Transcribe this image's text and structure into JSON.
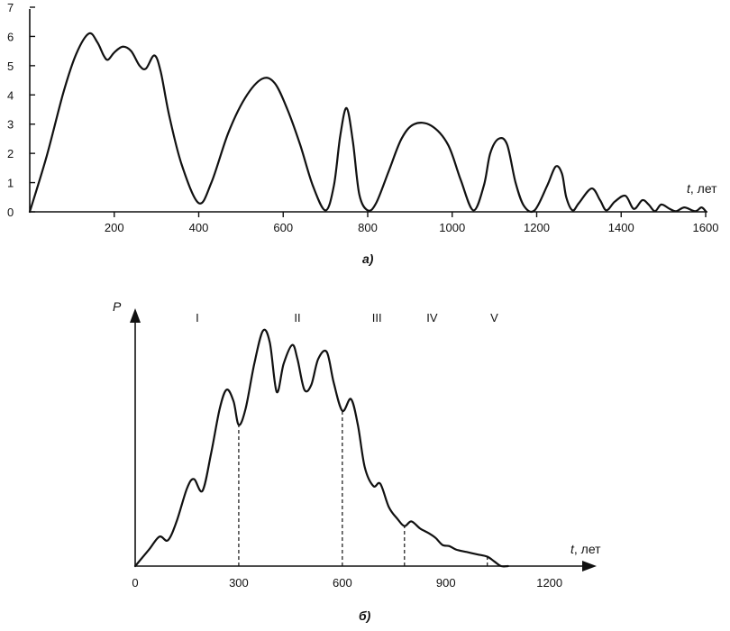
{
  "chart_data": [
    {
      "type": "line",
      "panel_label": "а)",
      "title": "",
      "xlabel_var": "t",
      "xlabel_unit": ", лет",
      "ylabel": "",
      "xlim": [
        0,
        1600
      ],
      "ylim": [
        0,
        7
      ],
      "x_ticks": [
        200,
        400,
        600,
        800,
        1000,
        1200,
        1400,
        1600
      ],
      "y_ticks": [
        0,
        1,
        2,
        3,
        4,
        5,
        6,
        7
      ],
      "grid": false,
      "series": [
        {
          "x": [
            0,
            40,
            80,
            110,
            140,
            160,
            175,
            185,
            200,
            220,
            240,
            260,
            275,
            295,
            310,
            330,
            360,
            400,
            430,
            470,
            510,
            550,
            580,
            610,
            640,
            670,
            700,
            720,
            735,
            750,
            765,
            780,
            800,
            820,
            850,
            880,
            910,
            950,
            990,
            1020,
            1050,
            1075,
            1090,
            1110,
            1130,
            1150,
            1170,
            1195,
            1225,
            1245,
            1260,
            1270,
            1285,
            1300,
            1330,
            1350,
            1365,
            1385,
            1410,
            1430,
            1450,
            1465,
            1480,
            1495,
            1515,
            1530,
            1550,
            1575,
            1590,
            1600
          ],
          "y": [
            0,
            1.9,
            4.1,
            5.4,
            6.1,
            5.8,
            5.35,
            5.2,
            5.45,
            5.65,
            5.5,
            5.0,
            4.9,
            5.35,
            4.8,
            3.3,
            1.6,
            0.3,
            1.0,
            2.7,
            3.9,
            4.55,
            4.4,
            3.5,
            2.3,
            0.9,
            0.05,
            0.9,
            2.6,
            3.55,
            2.4,
            0.6,
            0.05,
            0.3,
            1.4,
            2.5,
            3.0,
            2.95,
            2.3,
            1.1,
            0.05,
            0.9,
            2.0,
            2.5,
            2.3,
            1.0,
            0.2,
            0.05,
            0.9,
            1.55,
            1.3,
            0.5,
            0.05,
            0.3,
            0.8,
            0.4,
            0.05,
            0.35,
            0.55,
            0.1,
            0.4,
            0.25,
            0.02,
            0.25,
            0.1,
            0.02,
            0.15,
            0.02,
            0.15,
            0.02
          ]
        }
      ]
    },
    {
      "type": "line",
      "panel_label": "б)",
      "title": "",
      "ylabel": "P",
      "xlabel_var": "t",
      "xlabel_unit": ", лет",
      "xlim": [
        0,
        1300
      ],
      "ylim": [
        0,
        1.0
      ],
      "x_ticks": [
        0,
        300,
        600,
        900,
        1200
      ],
      "grid": false,
      "regions": [
        "I",
        "II",
        "III",
        "IV",
        "V"
      ],
      "region_centers": [
        180,
        470,
        700,
        860,
        1040
      ],
      "region_boundaries": [
        300,
        600,
        780,
        1020
      ],
      "series": [
        {
          "x": [
            0,
            40,
            70,
            95,
            120,
            150,
            170,
            195,
            220,
            245,
            265,
            285,
            300,
            320,
            345,
            370,
            390,
            410,
            430,
            455,
            470,
            490,
            510,
            530,
            555,
            575,
            600,
            625,
            645,
            665,
            690,
            710,
            735,
            760,
            780,
            800,
            825,
            850,
            870,
            890,
            910,
            930,
            960,
            990,
            1020,
            1040,
            1060,
            1080
          ],
          "y": [
            0,
            0.07,
            0.125,
            0.11,
            0.19,
            0.33,
            0.37,
            0.32,
            0.48,
            0.67,
            0.75,
            0.7,
            0.6,
            0.67,
            0.86,
            1.0,
            0.95,
            0.74,
            0.86,
            0.94,
            0.88,
            0.75,
            0.77,
            0.88,
            0.91,
            0.78,
            0.66,
            0.71,
            0.6,
            0.42,
            0.34,
            0.35,
            0.25,
            0.2,
            0.17,
            0.19,
            0.16,
            0.14,
            0.12,
            0.09,
            0.085,
            0.07,
            0.06,
            0.05,
            0.04,
            0.02,
            0.0,
            0.0
          ]
        }
      ]
    }
  ]
}
